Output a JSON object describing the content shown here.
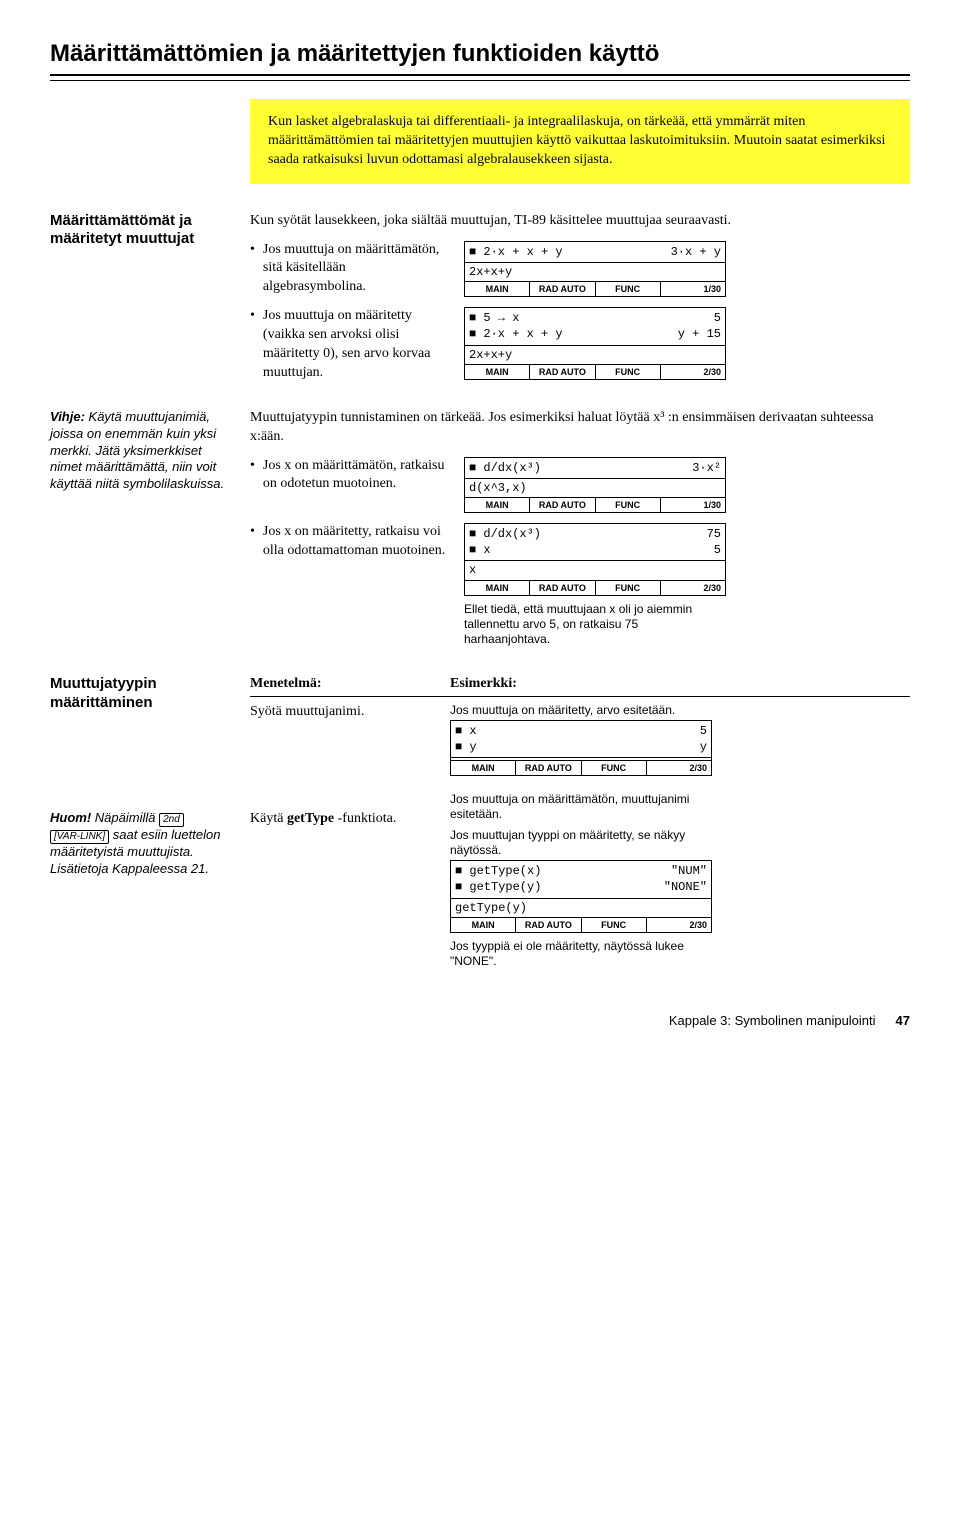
{
  "title": "Määrittämättömien ja määritettyjen funktioiden käyttö",
  "intro": "Kun lasket algebralaskuja tai differentiaali- ja integraalilaskuja, on tärkeää, että ymmärrät miten määrittämättömien tai määritettyjen muuttujien käyttö vaikuttaa laskutoimituksiin. Muutoin saatat esimerkiksi saada ratkaisuksi luvun odottamasi algebralausekkeen sijasta.",
  "section1": {
    "heading": "Määrittämättömät ja määritetyt muuttujat",
    "lead": "Kun syötät lausekkeen, joka siältää muuttujan, TI-89 käsittelee muuttujaa seuraavasti.",
    "b1": "Jos muuttuja on määrittämätön, sitä käsitellään algebrasymbolina.",
    "b2": "Jos muuttuja on määritetty (vaikka sen arvoksi olisi määritetty 0), sen arvo korvaa muuttujan."
  },
  "hint1": {
    "label": "Vihje:",
    "text": " Käytä muuttujanimiä, joissa on enemmän kuin yksi merkki. Jätä yksimerkkiset nimet määrittämättä, niin voit käyttää niitä symbolilaskuissa."
  },
  "section2": {
    "lead": "Muuttujatyypin tunnistaminen on tärkeää. Jos esimerkiksi haluat löytää x³ :n ensimmäisen derivaatan suhteessa x:ään.",
    "b1": "Jos x on määrittämätön, ratkaisu on odotetun muotoinen.",
    "b2": "Jos x on määritetty, ratkaisu voi olla odottamattoman muotoinen.",
    "caption": "Ellet tiedä, että muuttujaan x oli jo aiemmin tallennettu arvo 5, on ratkaisu 75 harhaanjohtava."
  },
  "section3": {
    "heading": "Muuttujatyypin määrittäminen",
    "th1": "Menetelmä:",
    "th2": "Esimerkki:",
    "r1c1": "Syötä muuttujanimi.",
    "cap1": "Jos muuttuja on määritetty, arvo esitetään.",
    "cap2": "Jos muuttuja on määrittämätön, muuttujanimi esitetään.",
    "r2c1a": "Käytä ",
    "r2c1b": "getType",
    "r2c1c": " -funktiota.",
    "cap3": "Jos muuttujan tyyppi on määritetty, se näkyy näytössä.",
    "cap4": "Jos tyyppiä ei ole määritetty, näytössä lukee \"NONE\"."
  },
  "hint2": {
    "label": "Huom!",
    "text1": " Näpäimillä ",
    "key1": "2nd",
    "key2": "[VAR-LINK]",
    "text2": " saat esiin luettelon määritetyistä muuttujista. Lisätietoja Kappaleessa 21."
  },
  "calc1": {
    "l1a": "■ 2·x + x + y",
    "l1b": "3·x + y",
    "input": "2x+x+y",
    "s1": "MAIN",
    "s2": "RAD AUTO",
    "s3": "FUNC",
    "s4": "1/30"
  },
  "calc2": {
    "l1a": "■ 5 → x",
    "l1b": "5",
    "l2a": "■ 2·x + x + y",
    "l2b": "y + 15",
    "input": "2x+x+y",
    "s1": "MAIN",
    "s2": "RAD AUTO",
    "s3": "FUNC",
    "s4": "2/30"
  },
  "calc3": {
    "l1a": "■ d/dx(x³)",
    "l1b": "3·x²",
    "input": "d(x^3,x)",
    "s1": "MAIN",
    "s2": "RAD AUTO",
    "s3": "FUNC",
    "s4": "1/30"
  },
  "calc4": {
    "l1a": "■ d/dx(x³)",
    "l1b": "75",
    "l2a": "■ x",
    "l2b": "5",
    "input": "x",
    "s1": "MAIN",
    "s2": "RAD AUTO",
    "s3": "FUNC",
    "s4": "2/30"
  },
  "calc5": {
    "l1a": "■ x",
    "l1b": "5",
    "l2a": "■ y",
    "l2b": "y",
    "input": "",
    "s1": "MAIN",
    "s2": "RAD AUTO",
    "s3": "FUNC",
    "s4": "2/30"
  },
  "calc6": {
    "l1a": "■ getType(x)",
    "l1b": "\"NUM\"",
    "l2a": "■ getType(y)",
    "l2b": "\"NONE\"",
    "input": "getType(y)",
    "s1": "MAIN",
    "s2": "RAD AUTO",
    "s3": "FUNC",
    "s4": "2/30"
  },
  "footer": {
    "chapter": "Kappale 3: Symbolinen manipulointi",
    "page": "47"
  }
}
